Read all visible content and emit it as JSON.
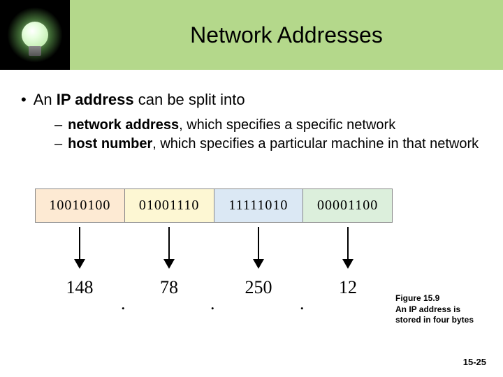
{
  "title": "Network Addresses",
  "bullet": {
    "lead": "An ",
    "bold": "IP address",
    "rest": " can be split into"
  },
  "sub1": {
    "bold": "network address",
    "rest": ", which specifies a specific network"
  },
  "sub2": {
    "bold": "host number",
    "rest": ", which specifies a particular machine in that network"
  },
  "diagram": {
    "octets": [
      {
        "bin": "10010100",
        "dec": "148",
        "bg": "#fdead3"
      },
      {
        "bin": "01001110",
        "dec": "78",
        "bg": "#fdf7d3"
      },
      {
        "bin": "11111010",
        "dec": "250",
        "bg": "#dbe8f4"
      },
      {
        "bin": "00001100",
        "dec": "12",
        "bg": "#dcefdc"
      }
    ],
    "arrow_color": "#000000",
    "border_color": "#888888",
    "font": "Times New Roman"
  },
  "caption": {
    "fig": "Figure 15.9",
    "text": "An IP address is stored in four bytes"
  },
  "page": "15-25"
}
